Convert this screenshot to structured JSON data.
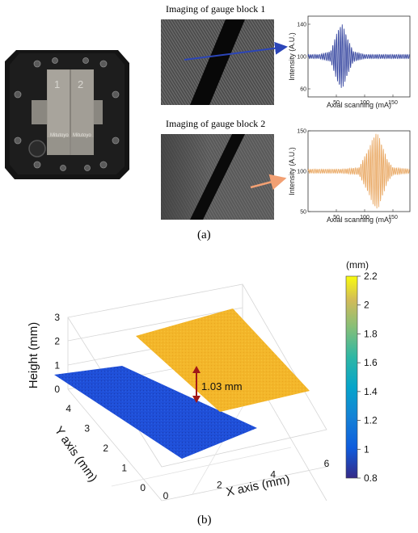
{
  "panel_a": {
    "caption": "(a)",
    "imaging_1_title": "Imaging of gauge block 1",
    "imaging_2_title": "Imaging of gauge block 2",
    "photo_labels": [
      "1",
      "2"
    ],
    "photo_brand": [
      "Mitutoyo",
      "Mitutoyo"
    ]
  },
  "panel_b": {
    "caption": "(b)",
    "annotation": "1.03 mm",
    "colorbar_unit": "(mm)"
  },
  "colors": {
    "blue_signal": "#2a3b9a",
    "orange_signal": "#e8a35a",
    "arrow_blue": "#2b45b8",
    "arrow_orange": "#f2a073",
    "height_arrow": "#a01818",
    "block1_surface": "#1f4fd8",
    "block2_surface": "#f2b928"
  },
  "chart_data": [
    {
      "type": "line",
      "xlabel": "Axial scanning (mA)",
      "ylabel": "Intensity (A.U.)",
      "xticks": [
        50,
        100,
        150
      ],
      "yticks": [
        60,
        100,
        140
      ],
      "xlim": [
        0,
        180
      ],
      "ylim": [
        50,
        150
      ],
      "signal": "interference fringe packet centered near x = 60",
      "series": [
        {
          "x": [
            0,
            20,
            40,
            50,
            55,
            60,
            65,
            70,
            80,
            100,
            140,
            180
          ],
          "y": [
            100,
            100,
            104,
            125,
            134,
            138,
            130,
            120,
            104,
            100,
            100,
            100
          ]
        }
      ]
    },
    {
      "type": "line",
      "xlabel": "Axial scanning (mA)",
      "ylabel": "Intensity (A.U.)",
      "xticks": [
        50,
        100,
        150
      ],
      "yticks": [
        50,
        100,
        150
      ],
      "xlim": [
        0,
        180
      ],
      "ylim": [
        50,
        150
      ],
      "signal": "interference fringe packet centered near x = 120",
      "series": [
        {
          "x": [
            0,
            60,
            90,
            110,
            115,
            120,
            125,
            130,
            140,
            150,
            180
          ],
          "y": [
            100,
            100,
            102,
            130,
            140,
            145,
            142,
            132,
            112,
            102,
            100
          ]
        }
      ]
    },
    {
      "type": "surface3d",
      "xlabel": "X axis (mm)",
      "ylabel": "Y axis (mm)",
      "zlabel": "Height (mm)",
      "xticks": [
        0,
        2,
        4,
        6
      ],
      "yticks": [
        0,
        1,
        2,
        3,
        4
      ],
      "zticks": [
        0,
        1,
        2,
        3
      ],
      "xlim": [
        0,
        6
      ],
      "ylim": [
        0,
        4.5
      ],
      "zlim": [
        0,
        3
      ],
      "surfaces": [
        {
          "name": "gauge block 1",
          "height": 1.0
        },
        {
          "name": "gauge block 2",
          "height": 2.03
        }
      ],
      "step_height": 1.03,
      "colorbar": {
        "label": "(mm)",
        "min": 0.8,
        "max": 2.2,
        "ticks": [
          0.8,
          1,
          1.2,
          1.4,
          1.6,
          1.8,
          2,
          2.2
        ],
        "colormap": "parula"
      }
    }
  ]
}
